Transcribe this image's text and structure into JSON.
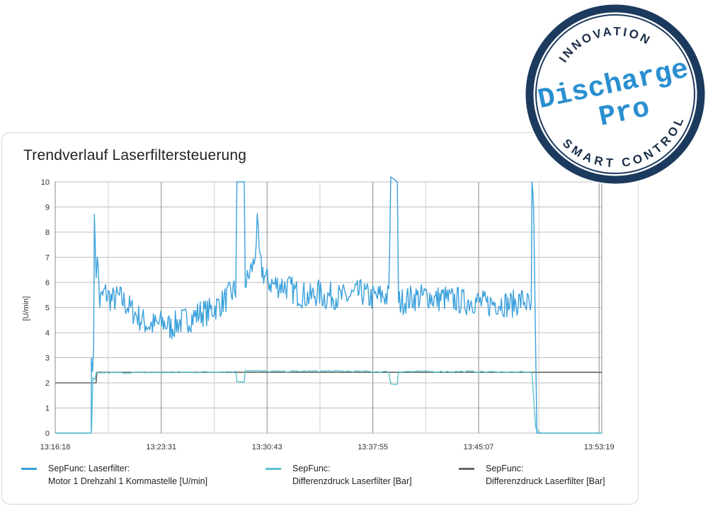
{
  "chart_data": {
    "type": "line",
    "title": "Trendverlauf Laserfiltersteuerung",
    "ylabel": "[U/min]",
    "xlabel": "",
    "ylim": [
      0,
      10
    ],
    "yticks": [
      "0",
      "1",
      "2",
      "3",
      "4",
      "5",
      "6",
      "7",
      "8",
      "9",
      "10"
    ],
    "x_ticks": [
      "13:16:18",
      "13:23:31",
      "13:30:43",
      "13:37:55",
      "13:45:07",
      "13:53:19"
    ],
    "grid": true,
    "series": [
      {
        "name": "SepFunc: Laserfilter: Motor 1 Drehzahl 1 Kommastelle  [U/min]",
        "color": "#3aa0dc",
        "points": [
          [
            "13:16:18",
            0
          ],
          [
            "13:18:45",
            0
          ],
          [
            "13:18:46",
            3.0
          ],
          [
            "13:18:55",
            3.0
          ],
          [
            "13:18:58",
            8.7
          ],
          [
            "13:19:05",
            6.5
          ],
          [
            "13:19:10",
            7.0
          ],
          [
            "13:19:20",
            5.2
          ],
          [
            "13:19:40",
            5.6
          ],
          [
            "13:20:10",
            5.3
          ],
          [
            "13:20:40",
            5.4
          ],
          [
            "13:21:10",
            5.1
          ],
          [
            "13:21:40",
            4.8
          ],
          [
            "13:22:10",
            4.5
          ],
          [
            "13:22:40",
            4.3
          ],
          [
            "13:23:10",
            4.3
          ],
          [
            "13:23:40",
            4.4
          ],
          [
            "13:24:10",
            4.2
          ],
          [
            "13:24:40",
            4.4
          ],
          [
            "13:25:10",
            4.5
          ],
          [
            "13:25:40",
            4.6
          ],
          [
            "13:26:10",
            4.8
          ],
          [
            "13:26:40",
            4.8
          ],
          [
            "13:27:10",
            5.0
          ],
          [
            "13:27:40",
            5.2
          ],
          [
            "13:28:10",
            5.5
          ],
          [
            "13:28:35",
            5.7
          ],
          [
            "13:28:40",
            10
          ],
          [
            "13:29:10",
            10
          ],
          [
            "13:29:14",
            5.8
          ],
          [
            "13:29:30",
            6.3
          ],
          [
            "13:29:50",
            6.8
          ],
          [
            "13:30:03",
            8.2
          ],
          [
            "13:30:15",
            6.7
          ],
          [
            "13:30:40",
            6.1
          ],
          [
            "13:31:10",
            5.9
          ],
          [
            "13:31:40",
            5.9
          ],
          [
            "13:32:10",
            5.8
          ],
          [
            "13:32:40",
            5.6
          ],
          [
            "13:33:10",
            5.5
          ],
          [
            "13:33:40",
            5.4
          ],
          [
            "13:34:10",
            5.6
          ],
          [
            "13:34:40",
            5.4
          ],
          [
            "13:35:10",
            5.5
          ],
          [
            "13:35:40",
            5.4
          ],
          [
            "13:36:10",
            5.4
          ],
          [
            "13:36:40",
            5.5
          ],
          [
            "13:37:10",
            5.6
          ],
          [
            "13:37:40",
            5.4
          ],
          [
            "13:38:10",
            5.4
          ],
          [
            "13:38:40",
            5.5
          ],
          [
            "13:39:00",
            5.4
          ],
          [
            "13:39:08",
            10
          ],
          [
            "13:39:35",
            10
          ],
          [
            "13:39:40",
            5.2
          ],
          [
            "13:40:10",
            5.3
          ],
          [
            "13:40:40",
            5.4
          ],
          [
            "13:41:10",
            5.4
          ],
          [
            "13:41:40",
            5.5
          ],
          [
            "13:42:10",
            5.3
          ],
          [
            "13:42:40",
            5.4
          ],
          [
            "13:43:10",
            5.3
          ],
          [
            "13:43:40",
            5.3
          ],
          [
            "13:44:10",
            5.2
          ],
          [
            "13:44:40",
            5.3
          ],
          [
            "13:45:10",
            5.2
          ],
          [
            "13:45:40",
            5.1
          ],
          [
            "13:46:10",
            5.2
          ],
          [
            "13:46:40",
            5.2
          ],
          [
            "13:47:10",
            5.1
          ],
          [
            "13:47:40",
            5.2
          ],
          [
            "13:48:10",
            5.3
          ],
          [
            "13:48:30",
            5.1
          ],
          [
            "13:48:42",
            4.8
          ],
          [
            "13:48:45",
            10
          ],
          [
            "13:48:52",
            8.5
          ],
          [
            "13:49:05",
            0
          ],
          [
            "13:53:30",
            0
          ]
        ]
      },
      {
        "name": "SepFunc: Differenzdruck Laserfilter  [Bar]",
        "color": "#5cc3cf",
        "points": [
          [
            "13:16:18",
            0
          ],
          [
            "13:18:45",
            0
          ],
          [
            "13:18:47",
            0.2
          ],
          [
            "13:18:52",
            2.2
          ],
          [
            "13:19:00",
            2.1
          ],
          [
            "13:19:05",
            2.4
          ],
          [
            "13:25:00",
            2.42
          ],
          [
            "13:28:35",
            2.45
          ],
          [
            "13:28:40",
            2.05
          ],
          [
            "13:29:10",
            2.05
          ],
          [
            "13:29:14",
            2.5
          ],
          [
            "13:31:00",
            2.45
          ],
          [
            "13:35:00",
            2.47
          ],
          [
            "13:39:00",
            2.44
          ],
          [
            "13:39:08",
            1.95
          ],
          [
            "13:39:35",
            1.95
          ],
          [
            "13:39:40",
            2.45
          ],
          [
            "13:44:00",
            2.45
          ],
          [
            "13:48:30",
            2.42
          ],
          [
            "13:48:45",
            2.4
          ],
          [
            "13:49:00",
            0.2
          ],
          [
            "13:49:20",
            0
          ],
          [
            "13:53:30",
            0
          ]
        ]
      },
      {
        "name": "SepFunc: Differenzdruck Laserfilter  [Bar]",
        "color": "#666666",
        "points": [
          [
            "13:16:18",
            2.0
          ],
          [
            "13:19:05",
            2.0
          ],
          [
            "13:19:08",
            2.42
          ],
          [
            "13:53:30",
            2.42
          ]
        ]
      }
    ]
  },
  "legend": [
    {
      "line1": "SepFunc: Laserfilter:",
      "line2": "Motor 1 Drehzahl 1 Kommastelle  [U/min]",
      "color": "#3aa0dc"
    },
    {
      "line1": "SepFunc:",
      "line2": "Differenzdruck Laserfilter  [Bar]",
      "color": "#5cc3cf"
    },
    {
      "line1": "SepFunc:",
      "line2": "Differenzdruck Laserfilter  [Bar]",
      "color": "#666666"
    }
  ],
  "badge": {
    "top_text": "INNOVATION",
    "line1": "Discharge",
    "line2": "Pro",
    "bottom_text": "SMART CONTROL",
    "ring_color": "#1c3a5e",
    "text_color": "#2a8fd0"
  }
}
